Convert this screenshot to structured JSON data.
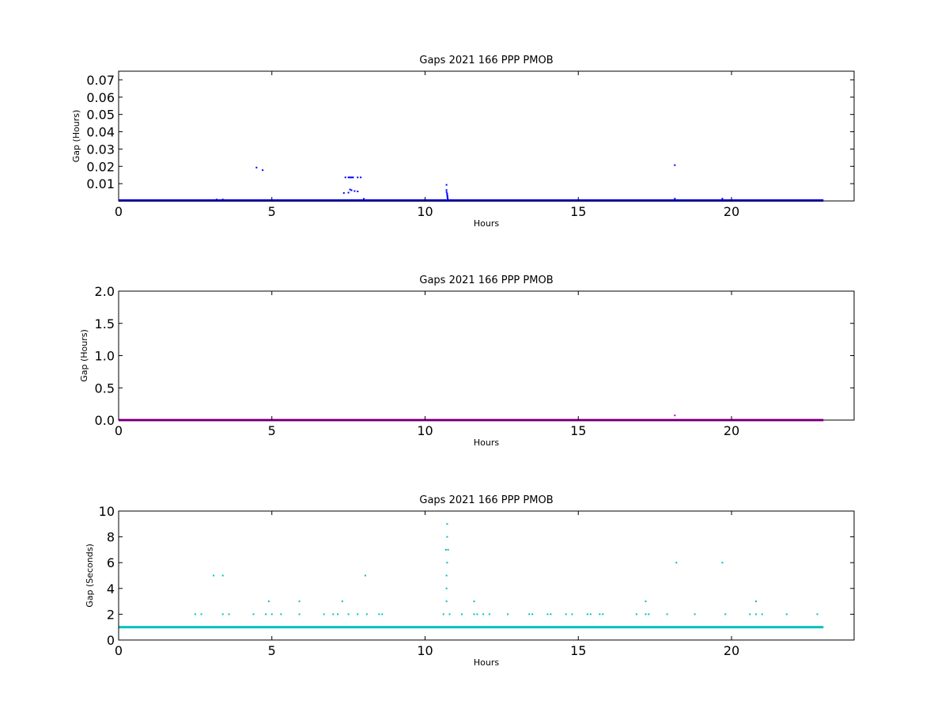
{
  "chart_data": [
    {
      "type": "scatter",
      "title": "Gaps 2021 166 PPP  PMOB",
      "xlabel": "Hours",
      "ylabel": "Gap (Hours)",
      "xlim": [
        0,
        24
      ],
      "ylim": [
        0,
        0.075
      ],
      "xticks": [
        0,
        5,
        10,
        15,
        20
      ],
      "yticks": [
        0.01,
        0.02,
        0.03,
        0.04,
        0.05,
        0.06,
        0.07
      ],
      "ytick_labels": [
        "0.01",
        "0.02",
        "0.03",
        "0.04",
        "0.05",
        "0.06",
        "0.07"
      ],
      "color": "#0000ff",
      "baseline": {
        "y": 0.0003,
        "x_from": 0,
        "x_to": 23
      }
    },
    {
      "type": "scatter",
      "title": "Gaps 2021 166 PPP  PMOB",
      "xlabel": "Hours",
      "ylabel": "Gap (Hours)",
      "xlim": [
        0,
        24
      ],
      "ylim": [
        0,
        2.0
      ],
      "xticks": [
        0,
        5,
        10,
        15,
        20
      ],
      "yticks": [
        0.0,
        0.5,
        1.0,
        1.5,
        2.0
      ],
      "ytick_labels": [
        "0.0",
        "0.5",
        "1.0",
        "1.5",
        "2.0"
      ],
      "color": "#bf00bf",
      "baseline": {
        "y": 0.0003,
        "x_from": 0,
        "x_to": 23
      }
    },
    {
      "type": "scatter",
      "title": "Gaps 2021 166 PPP  PMOB",
      "xlabel": "Hours",
      "ylabel": "Gap (Seconds)",
      "xlim": [
        0,
        24
      ],
      "ylim": [
        0,
        10
      ],
      "xticks": [
        0,
        5,
        10,
        15,
        20
      ],
      "yticks": [
        0,
        2,
        4,
        6,
        8,
        10
      ],
      "ytick_labels": [
        "0",
        "2",
        "4",
        "6",
        "8",
        "10"
      ],
      "color": "#00bfbf",
      "baseline": {
        "y": 1,
        "x_from": 0,
        "x_to": 23
      }
    }
  ]
}
